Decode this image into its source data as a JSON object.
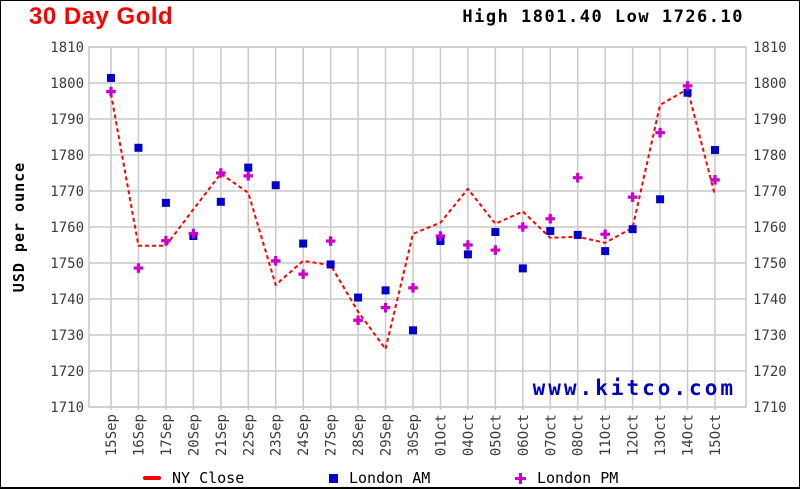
{
  "header": {
    "title": "30 Day Gold",
    "high_low_text": "High 1801.40 Low 1726.10"
  },
  "chart_data": {
    "type": "line",
    "title": "30 Day Gold",
    "high": 1801.4,
    "low": 1726.1,
    "ylabel": "USD per ounce",
    "ylim": [
      1710,
      1810
    ],
    "yticks": [
      1710,
      1720,
      1730,
      1740,
      1750,
      1760,
      1770,
      1780,
      1790,
      1800,
      1810
    ],
    "grid": true,
    "legend_position": "bottom",
    "watermark": "www.kitco.com",
    "categories": [
      "15Sep",
      "16Sep",
      "17Sep",
      "20Sep",
      "21Sep",
      "22Sep",
      "23Sep",
      "24Sep",
      "27Sep",
      "28Sep",
      "29Sep",
      "30Sep",
      "01Oct",
      "04Oct",
      "05Oct",
      "06Oct",
      "07Oct",
      "08Oct",
      "11Oct",
      "12Oct",
      "13Oct",
      "14Oct",
      "15Oct"
    ],
    "series": [
      {
        "name": "NY Close",
        "style": "dashed-line",
        "color": "#ff0000",
        "values": [
          1797.0,
          1754.8,
          1754.8,
          1764.9,
          1774.8,
          1769.5,
          1743.9,
          1750.6,
          1749.4,
          1736.5,
          1726.1,
          1758.1,
          1761.2,
          1770.6,
          1760.9,
          1764.3,
          1757.0,
          1757.3,
          1755.6,
          1759.8,
          1793.9,
          1798.3,
          1768.8
        ]
      },
      {
        "name": "London AM",
        "style": "square-marker",
        "color": "#0000cc",
        "values": [
          1801.4,
          1782.0,
          1766.7,
          1757.5,
          1767.0,
          1776.5,
          1771.6,
          1755.4,
          1749.6,
          1740.4,
          1742.4,
          1731.3,
          1756.1,
          1752.4,
          1758.6,
          1748.5,
          1758.9,
          1757.8,
          1753.3,
          1759.4,
          1767.7,
          1797.3,
          1781.4
        ]
      },
      {
        "name": "London PM",
        "style": "plus-marker",
        "color": "#cc00cc",
        "values": [
          1797.6,
          1748.6,
          1756.2,
          1758.2,
          1775.0,
          1774.2,
          1750.6,
          1746.9,
          1756.1,
          1734.1,
          1737.6,
          1743.1,
          1757.5,
          1755.0,
          1753.6,
          1760.0,
          1762.3,
          1773.7,
          1758.0,
          1768.3,
          1786.2,
          1799.2,
          1773.1
        ]
      }
    ]
  },
  "legend": {
    "items": [
      {
        "label": "NY Close",
        "marker": "red-dash",
        "color": "#ff0000"
      },
      {
        "label": "London AM",
        "marker": "blue-square",
        "color": "#0000cc"
      },
      {
        "label": "London PM",
        "marker": "magenta-plus",
        "color": "#cc00cc"
      }
    ]
  },
  "colors": {
    "title_red": "#ff0000",
    "line_red": "#ff0000",
    "square_blue": "#0000cc",
    "plus_magenta": "#cc00cc",
    "watermark_blue": "#0000cc",
    "grid": "#c9c9c9",
    "axis_text": "#3b3b3b"
  }
}
